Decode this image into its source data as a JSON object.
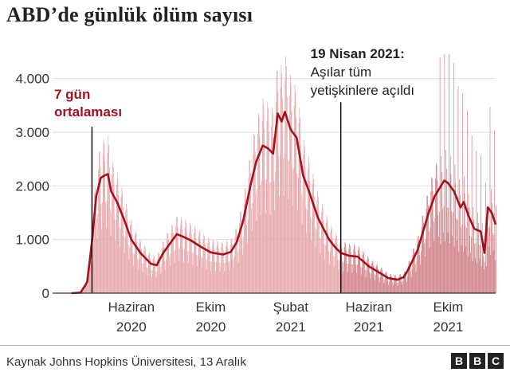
{
  "title": "ABD’de günlük ölüm sayısı",
  "source": "Kaynak Johns Hopkins Üniversitesi, 13 Aralık",
  "logo": [
    "B",
    "B",
    "C"
  ],
  "colors": {
    "bars": "#e6a4a8",
    "bars_after": "#cf7e85",
    "line": "#a3111d",
    "annotation_label": "#a3111d",
    "axis": "#333333",
    "grid": "#dddddd"
  },
  "chart_data": {
    "type": "bar",
    "overlay": "line",
    "title": "ABD’de günlük ölüm sayısı",
    "x_type": "date",
    "x_range": [
      "2020-02-01",
      "2021-12-13"
    ],
    "ylim": [
      0,
      4500
    ],
    "y_ticks": [
      0,
      1000,
      2000,
      3000,
      4000
    ],
    "y_tick_labels": [
      "0",
      "1.000",
      "2.000",
      "3.000",
      "4.000"
    ],
    "x_ticks": [
      {
        "date": "2020-06-01",
        "label": "Haziran 2020",
        "line1": "Haziran",
        "line2": "2020"
      },
      {
        "date": "2020-10-01",
        "label": "Ekim 2020",
        "line1": "Ekim",
        "line2": "2020"
      },
      {
        "date": "2021-02-01",
        "label": "Şubat 2021",
        "line1": "Şubat",
        "line2": "2021"
      },
      {
        "date": "2021-06-01",
        "label": "Haziran 2021",
        "line1": "Haziran",
        "line2": "2021"
      },
      {
        "date": "2021-10-01",
        "label": "Ekim 2021",
        "line1": "Ekim",
        "line2": "2021"
      }
    ],
    "grid": true,
    "series": [
      {
        "name": "7 gün ortalaması",
        "type": "line",
        "points": [
          [
            "2020-03-01",
            0
          ],
          [
            "2020-03-15",
            10
          ],
          [
            "2020-03-25",
            200
          ],
          [
            "2020-04-01",
            900
          ],
          [
            "2020-04-08",
            1800
          ],
          [
            "2020-04-15",
            2150
          ],
          [
            "2020-04-22",
            2200
          ],
          [
            "2020-04-26",
            2220
          ],
          [
            "2020-05-01",
            1900
          ],
          [
            "2020-05-10",
            1700
          ],
          [
            "2020-05-20",
            1400
          ],
          [
            "2020-06-01",
            1000
          ],
          [
            "2020-06-15",
            750
          ],
          [
            "2020-07-01",
            550
          ],
          [
            "2020-07-10",
            520
          ],
          [
            "2020-07-20",
            750
          ],
          [
            "2020-08-01",
            950
          ],
          [
            "2020-08-10",
            1100
          ],
          [
            "2020-08-20",
            1050
          ],
          [
            "2020-09-01",
            980
          ],
          [
            "2020-09-15",
            870
          ],
          [
            "2020-10-01",
            760
          ],
          [
            "2020-10-10",
            740
          ],
          [
            "2020-10-20",
            720
          ],
          [
            "2020-11-01",
            770
          ],
          [
            "2020-11-10",
            950
          ],
          [
            "2020-11-20",
            1350
          ],
          [
            "2020-12-01",
            2000
          ],
          [
            "2020-12-10",
            2450
          ],
          [
            "2020-12-20",
            2750
          ],
          [
            "2020-12-28",
            2700
          ],
          [
            "2021-01-05",
            2600
          ],
          [
            "2021-01-12",
            3350
          ],
          [
            "2021-01-18",
            3200
          ],
          [
            "2021-01-23",
            3380
          ],
          [
            "2021-02-01",
            3050
          ],
          [
            "2021-02-10",
            2900
          ],
          [
            "2021-02-20",
            2200
          ],
          [
            "2021-03-01",
            1900
          ],
          [
            "2021-03-15",
            1400
          ],
          [
            "2021-04-01",
            1000
          ],
          [
            "2021-04-10",
            860
          ],
          [
            "2021-04-19",
            750
          ],
          [
            "2021-05-01",
            700
          ],
          [
            "2021-05-15",
            680
          ],
          [
            "2021-06-01",
            500
          ],
          [
            "2021-06-15",
            400
          ],
          [
            "2021-07-01",
            280
          ],
          [
            "2021-07-15",
            250
          ],
          [
            "2021-07-25",
            300
          ],
          [
            "2021-08-01",
            450
          ],
          [
            "2021-08-15",
            800
          ],
          [
            "2021-09-01",
            1500
          ],
          [
            "2021-09-10",
            1800
          ],
          [
            "2021-09-20",
            2000
          ],
          [
            "2021-09-25",
            2100
          ],
          [
            "2021-10-01",
            2050
          ],
          [
            "2021-10-10",
            1900
          ],
          [
            "2021-10-20",
            1600
          ],
          [
            "2021-10-25",
            1700
          ],
          [
            "2021-11-01",
            1450
          ],
          [
            "2021-11-10",
            1200
          ],
          [
            "2021-11-20",
            1150
          ],
          [
            "2021-11-26",
            750
          ],
          [
            "2021-12-01",
            1600
          ],
          [
            "2021-12-07",
            1500
          ],
          [
            "2021-12-13",
            1280
          ]
        ]
      }
    ],
    "annotations": [
      {
        "date": "2020-04-15",
        "lines": [
          "7 gün",
          "ortalaması"
        ],
        "top_value": 3100
      },
      {
        "date": "2021-04-19",
        "lines": [
          "19 Nisan 2021:",
          "Aşılar tüm",
          "yetişkinlere açıldı"
        ],
        "top_value": 3560
      }
    ]
  }
}
